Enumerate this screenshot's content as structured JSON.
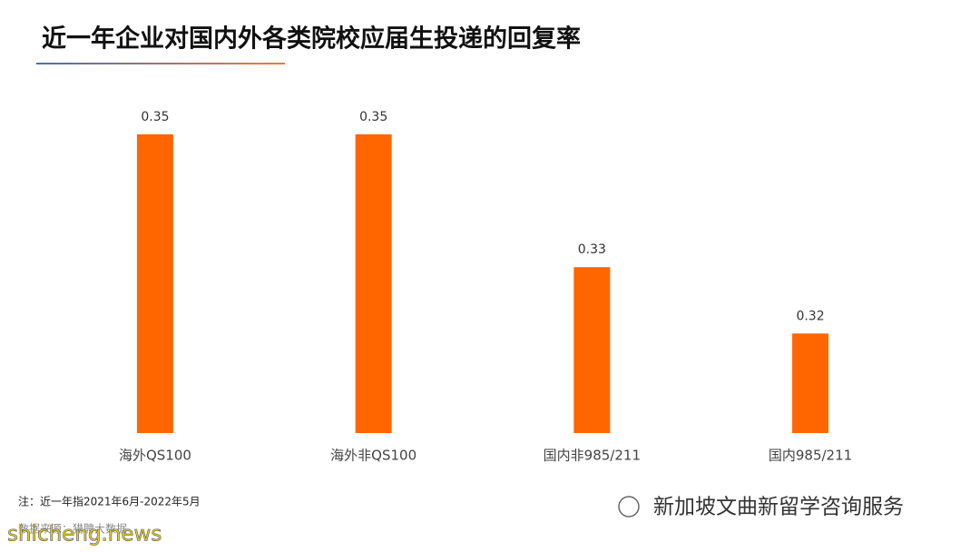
{
  "chart_data": {
    "type": "bar",
    "title": "近一年企业对国内外各类院校应届生投递的回复率",
    "categories": [
      "海外QS100",
      "海外非QS100",
      "国内非985/211",
      "国内985/211"
    ],
    "values": [
      0.35,
      0.35,
      0.33,
      0.32
    ],
    "color": "#ff6600",
    "ylim": [
      0.305,
      0.35
    ],
    "note": "注：近一年指2021年6月-2022年5月",
    "source": "数据来源：猎聘大数据",
    "watermark": "shicheng.news",
    "account": "新加坡文曲新留学咨询服务"
  }
}
